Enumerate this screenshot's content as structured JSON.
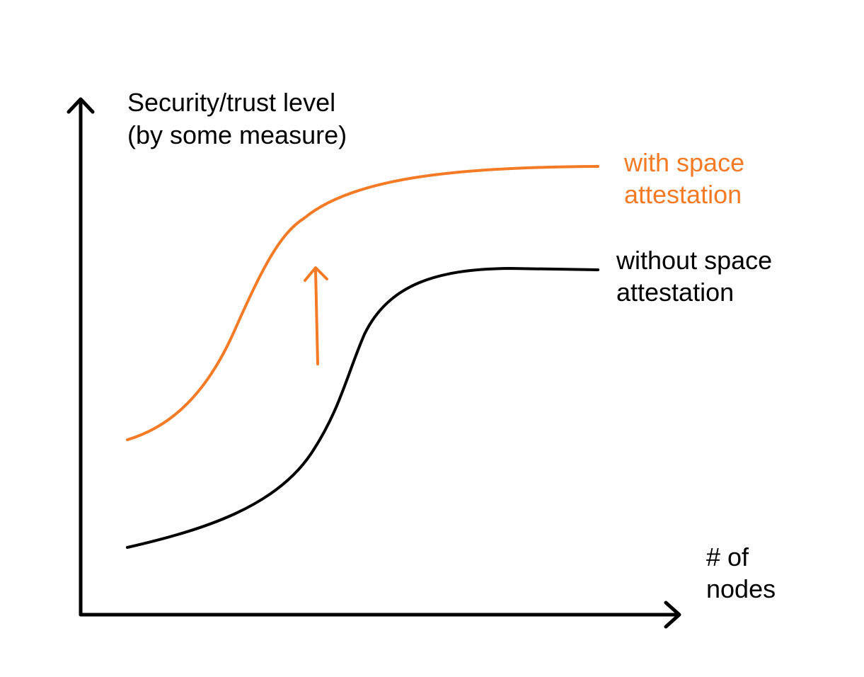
{
  "colors": {
    "axis": "#000000",
    "baseline_curve": "#000000",
    "improved_curve": "#F47A26",
    "background": "#FFFFFF"
  },
  "y_axis_label": {
    "line1": "Security/trust level",
    "line2": "(by some measure)"
  },
  "x_axis_label": {
    "line1": "# of",
    "line2": "nodes"
  },
  "curves": {
    "with": {
      "line1": "with space",
      "line2": "attestation"
    },
    "without": {
      "line1": "without space",
      "line2": "attestation"
    }
  },
  "icons": {
    "y_axis_arrowhead": "arrow-up-icon",
    "x_axis_arrowhead": "arrow-right-icon",
    "improvement_arrow": "arrow-up-icon"
  }
}
